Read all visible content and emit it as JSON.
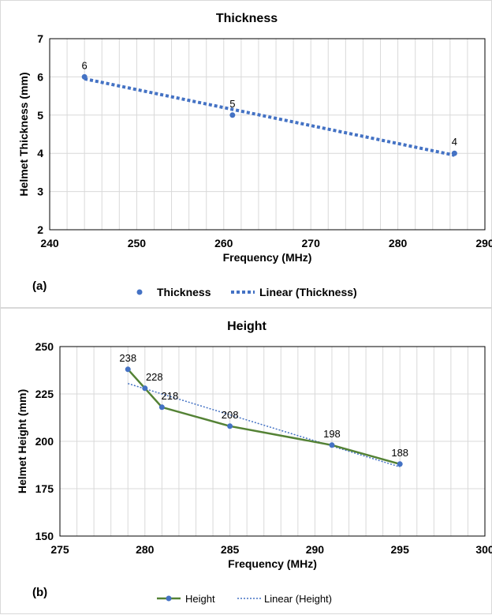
{
  "chart_data": [
    {
      "type": "scatter",
      "panel_label": "(a)",
      "title": "Thickness",
      "xlabel": "Frequency (MHz)",
      "ylabel": "Helmet Thickness (mm)",
      "xlim": [
        240,
        290
      ],
      "ylim": [
        2,
        7
      ],
      "xticks": [
        240,
        250,
        260,
        270,
        280,
        290
      ],
      "yticks": [
        2,
        3,
        4,
        5,
        6,
        7
      ],
      "x_minor_grid_step": 2,
      "legend_position": "bottom",
      "series": [
        {
          "name": "Thickness",
          "style": "markers",
          "color": "#4472c4",
          "x": [
            244,
            261,
            286.5
          ],
          "y": [
            6,
            5,
            4
          ],
          "labels": [
            "6",
            "5",
            "4"
          ]
        },
        {
          "name": "Linear (Thickness)",
          "style": "dotted-trendline",
          "color": "#4472c4",
          "x": [
            244,
            286.5
          ],
          "y": [
            5.95,
            3.95
          ]
        }
      ]
    },
    {
      "type": "line",
      "panel_label": "(b)",
      "title": "Height",
      "xlabel": "Frequency (MHz)",
      "ylabel": "Helmet Height  (mm)",
      "xlim": [
        275,
        300
      ],
      "ylim": [
        150,
        250
      ],
      "xticks": [
        275,
        280,
        285,
        290,
        295,
        300
      ],
      "yticks": [
        150,
        175,
        200,
        225,
        250
      ],
      "x_minor_grid_step": 1,
      "legend_position": "bottom",
      "series": [
        {
          "name": "Height",
          "style": "line-markers",
          "color": "#548235",
          "marker_color": "#4472c4",
          "x": [
            279,
            280,
            281,
            285,
            291,
            295
          ],
          "y": [
            238,
            228,
            218,
            208,
            198,
            188
          ],
          "labels": [
            "238",
            "228",
            "218",
            "208",
            "198",
            "188"
          ]
        },
        {
          "name": "Linear (Height)",
          "style": "dotted-trendline",
          "color": "#4472c4",
          "x": [
            279,
            295
          ],
          "y": [
            230.5,
            186.5
          ]
        }
      ]
    }
  ]
}
